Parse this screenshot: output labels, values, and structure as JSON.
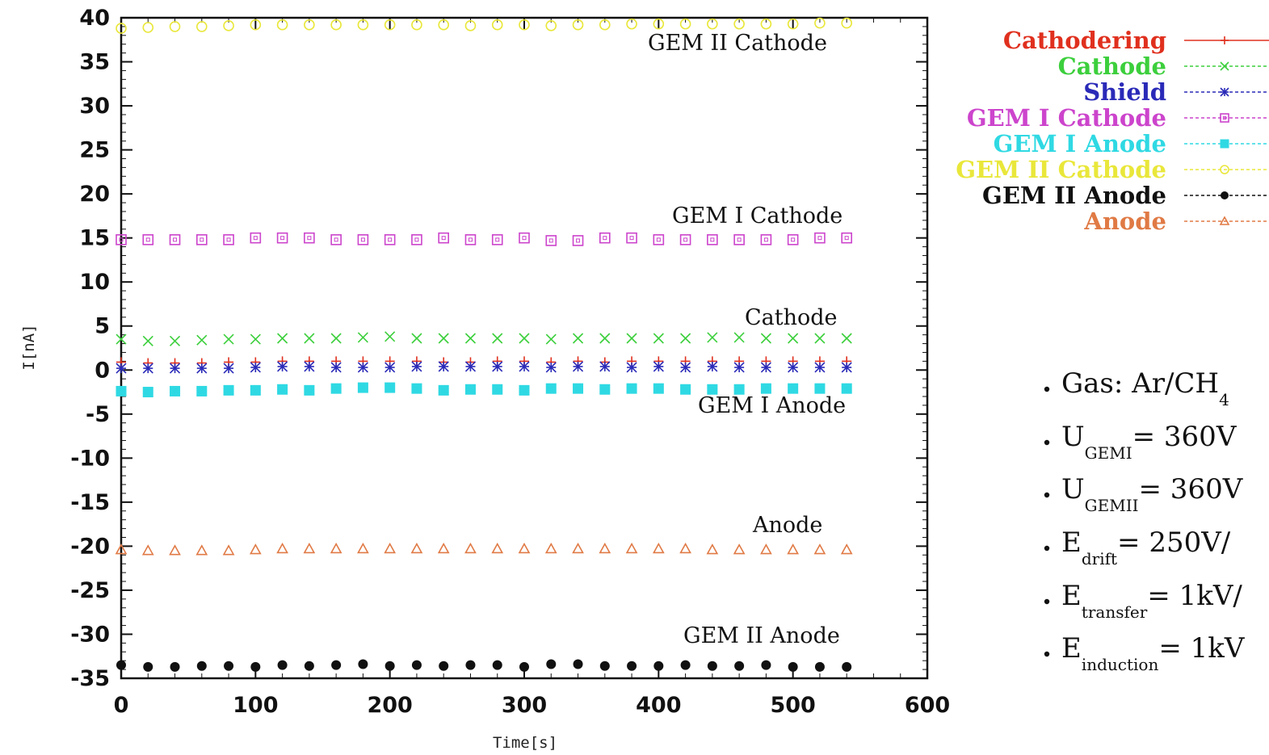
{
  "chart_data": {
    "type": "scatter",
    "xlabel": "Time[s]",
    "ylabel": "I[nA]",
    "xlim": [
      0,
      600
    ],
    "ylim": [
      -35,
      40
    ],
    "x_ticks": [
      0,
      100,
      200,
      300,
      400,
      500,
      600
    ],
    "y_ticks": [
      40,
      35,
      30,
      25,
      20,
      15,
      10,
      5,
      0,
      -5,
      -10,
      -15,
      -20,
      -25,
      -30,
      -35
    ],
    "x": [
      0,
      20,
      40,
      60,
      80,
      100,
      120,
      140,
      160,
      180,
      200,
      220,
      240,
      260,
      280,
      300,
      320,
      340,
      360,
      380,
      400,
      420,
      440,
      460,
      480,
      500,
      520,
      540
    ],
    "series": [
      {
        "name": "Cathodering",
        "color": "#e0301e",
        "marker": "plus",
        "values": [
          0.9,
          0.8,
          0.8,
          0.8,
          0.9,
          0.9,
          1.0,
          1.0,
          1.0,
          1.0,
          1.0,
          1.0,
          0.9,
          0.9,
          1.0,
          1.0,
          0.9,
          1.0,
          0.9,
          1.0,
          1.0,
          1.0,
          1.0,
          1.0,
          1.0,
          1.0,
          1.0,
          1.0
        ]
      },
      {
        "name": "Cathode",
        "color": "#3ccf3c",
        "marker": "x",
        "values": [
          3.5,
          3.3,
          3.3,
          3.4,
          3.5,
          3.5,
          3.6,
          3.6,
          3.6,
          3.7,
          3.8,
          3.6,
          3.6,
          3.6,
          3.6,
          3.6,
          3.5,
          3.6,
          3.6,
          3.6,
          3.6,
          3.6,
          3.7,
          3.7,
          3.6,
          3.6,
          3.6,
          3.6
        ]
      },
      {
        "name": "Shield",
        "color": "#2a2ab8",
        "marker": "star",
        "values": [
          0.2,
          0.2,
          0.2,
          0.2,
          0.2,
          0.3,
          0.4,
          0.4,
          0.3,
          0.3,
          0.3,
          0.4,
          0.4,
          0.4,
          0.4,
          0.4,
          0.3,
          0.4,
          0.4,
          0.3,
          0.4,
          0.3,
          0.4,
          0.3,
          0.3,
          0.3,
          0.3,
          0.3
        ]
      },
      {
        "name": "GEM I Cathode",
        "color": "#cc44cc",
        "marker": "square-open",
        "values": [
          14.8,
          14.8,
          14.8,
          14.8,
          14.8,
          15.0,
          15.0,
          15.0,
          14.8,
          14.8,
          14.8,
          14.8,
          15.0,
          14.8,
          14.8,
          15.0,
          14.7,
          14.7,
          15.0,
          15.0,
          14.8,
          14.8,
          14.8,
          14.8,
          14.8,
          14.8,
          15.0,
          15.0
        ]
      },
      {
        "name": "GEM I Anode",
        "color": "#2fd9e3",
        "marker": "square-filled",
        "values": [
          -2.4,
          -2.5,
          -2.4,
          -2.4,
          -2.3,
          -2.3,
          -2.2,
          -2.3,
          -2.1,
          -2.0,
          -2.0,
          -2.1,
          -2.3,
          -2.2,
          -2.2,
          -2.3,
          -2.1,
          -2.1,
          -2.2,
          -2.1,
          -2.1,
          -2.2,
          -2.2,
          -2.2,
          -2.1,
          -2.1,
          -2.1,
          -2.1
        ]
      },
      {
        "name": "GEM II Cathode",
        "color": "#e9e73a",
        "marker": "circle-open",
        "values": [
          38.8,
          38.9,
          39.0,
          39.0,
          39.1,
          39.2,
          39.2,
          39.2,
          39.2,
          39.2,
          39.2,
          39.2,
          39.2,
          39.1,
          39.2,
          39.2,
          39.1,
          39.2,
          39.2,
          39.3,
          39.3,
          39.3,
          39.3,
          39.3,
          39.3,
          39.3,
          39.4,
          39.4
        ]
      },
      {
        "name": "GEM II Anode",
        "color": "#111111",
        "marker": "circle-filled",
        "values": [
          -33.5,
          -33.7,
          -33.7,
          -33.6,
          -33.6,
          -33.7,
          -33.5,
          -33.6,
          -33.5,
          -33.4,
          -33.6,
          -33.5,
          -33.6,
          -33.5,
          -33.5,
          -33.7,
          -33.4,
          -33.4,
          -33.6,
          -33.6,
          -33.6,
          -33.5,
          -33.6,
          -33.6,
          -33.5,
          -33.7,
          -33.7,
          -33.7
        ]
      },
      {
        "name": "Anode",
        "color": "#e07a45",
        "marker": "triangle-open",
        "values": [
          -20.4,
          -20.5,
          -20.5,
          -20.5,
          -20.5,
          -20.4,
          -20.3,
          -20.3,
          -20.3,
          -20.3,
          -20.3,
          -20.3,
          -20.3,
          -20.3,
          -20.3,
          -20.3,
          -20.3,
          -20.3,
          -20.3,
          -20.3,
          -20.3,
          -20.3,
          -20.4,
          -20.4,
          -20.4,
          -20.4,
          -20.4,
          -20.4
        ]
      }
    ],
    "annotations": [
      "GEM II Cathode",
      "GEM I Cathode",
      "Cathode",
      "GEM I Anode",
      "Anode",
      "GEM II Anode"
    ],
    "grid": false,
    "legend_position": "top-right, outside plot"
  },
  "parameters": [
    {
      "main": "Gas: Ar/CH",
      "sub": "4"
    },
    {
      "main": "U",
      "sub": "GEMI",
      "tail": "= 360V"
    },
    {
      "main": "U",
      "sub": "GEMII",
      "tail": "= 360V"
    },
    {
      "main": "E",
      "sub": "drift",
      "tail": "= 250V/"
    },
    {
      "main": "E",
      "sub": "transfer",
      "tail": "= 1kV/"
    },
    {
      "main": "E",
      "sub": "induction",
      "tail": "= 1kV"
    }
  ]
}
